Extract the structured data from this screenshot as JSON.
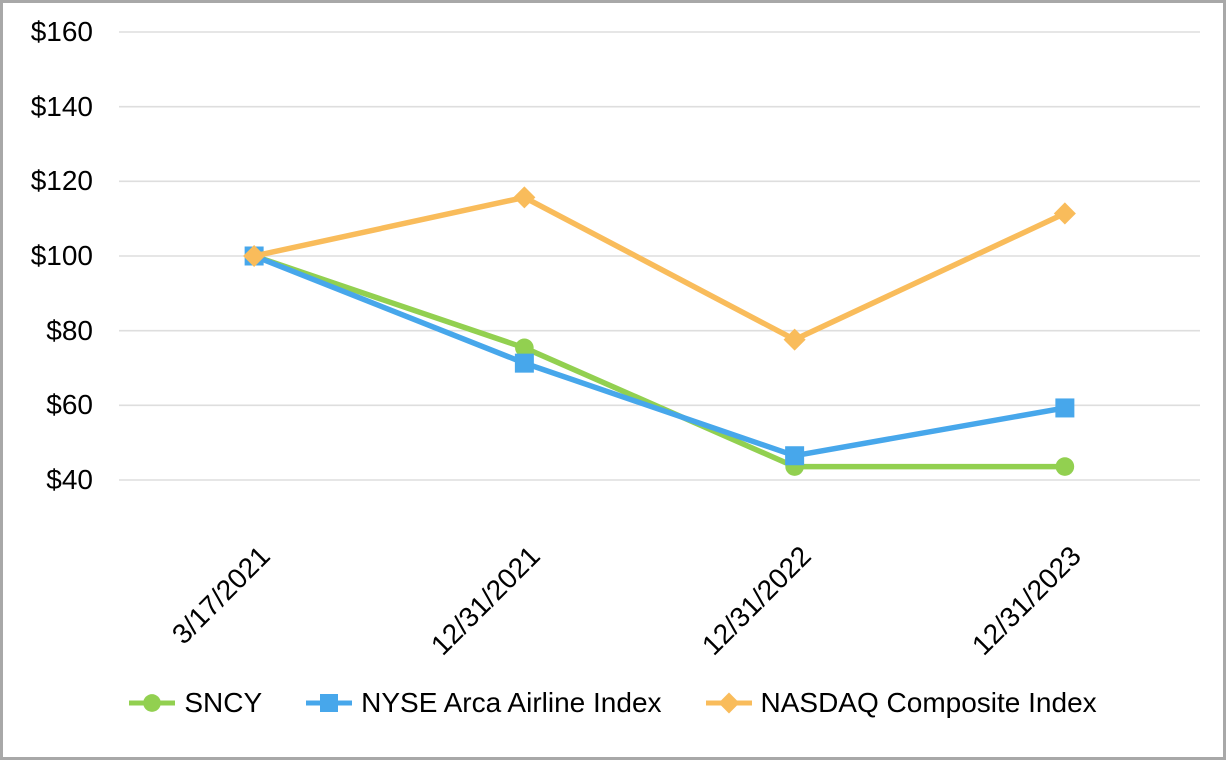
{
  "window": {
    "background": "#ffffff",
    "border_color": "#a8a8a8"
  },
  "chart_data": {
    "type": "line",
    "title": "",
    "xlabel": "",
    "ylabel": "",
    "x_labels": [
      "3/17/2021",
      "12/31/2021",
      "12/31/2022",
      "12/31/2023"
    ],
    "y_tick_labels": [
      "$160",
      "$140",
      "$120",
      "$100",
      "$80",
      "$60",
      "$40"
    ],
    "y_tick_values": [
      160,
      140,
      120,
      100,
      80,
      60,
      40
    ],
    "ylim": [
      40,
      160
    ],
    "grid": true,
    "grid_color": "#dedede",
    "legend_position": "bottom",
    "series": [
      {
        "name": "SNCY",
        "color": "#92d050",
        "marker": "circle",
        "values": [
          100,
          75.4,
          43.6,
          43.6
        ]
      },
      {
        "name": "NYSE Arca Airline Index",
        "color": "#47a7eb",
        "marker": "square",
        "values": [
          100,
          71.3,
          46.5,
          59.3
        ]
      },
      {
        "name": "NASDAQ Composite Index",
        "color": "#f9bc5b",
        "marker": "diamond",
        "values": [
          100,
          115.7,
          77.6,
          111.4
        ]
      }
    ]
  }
}
